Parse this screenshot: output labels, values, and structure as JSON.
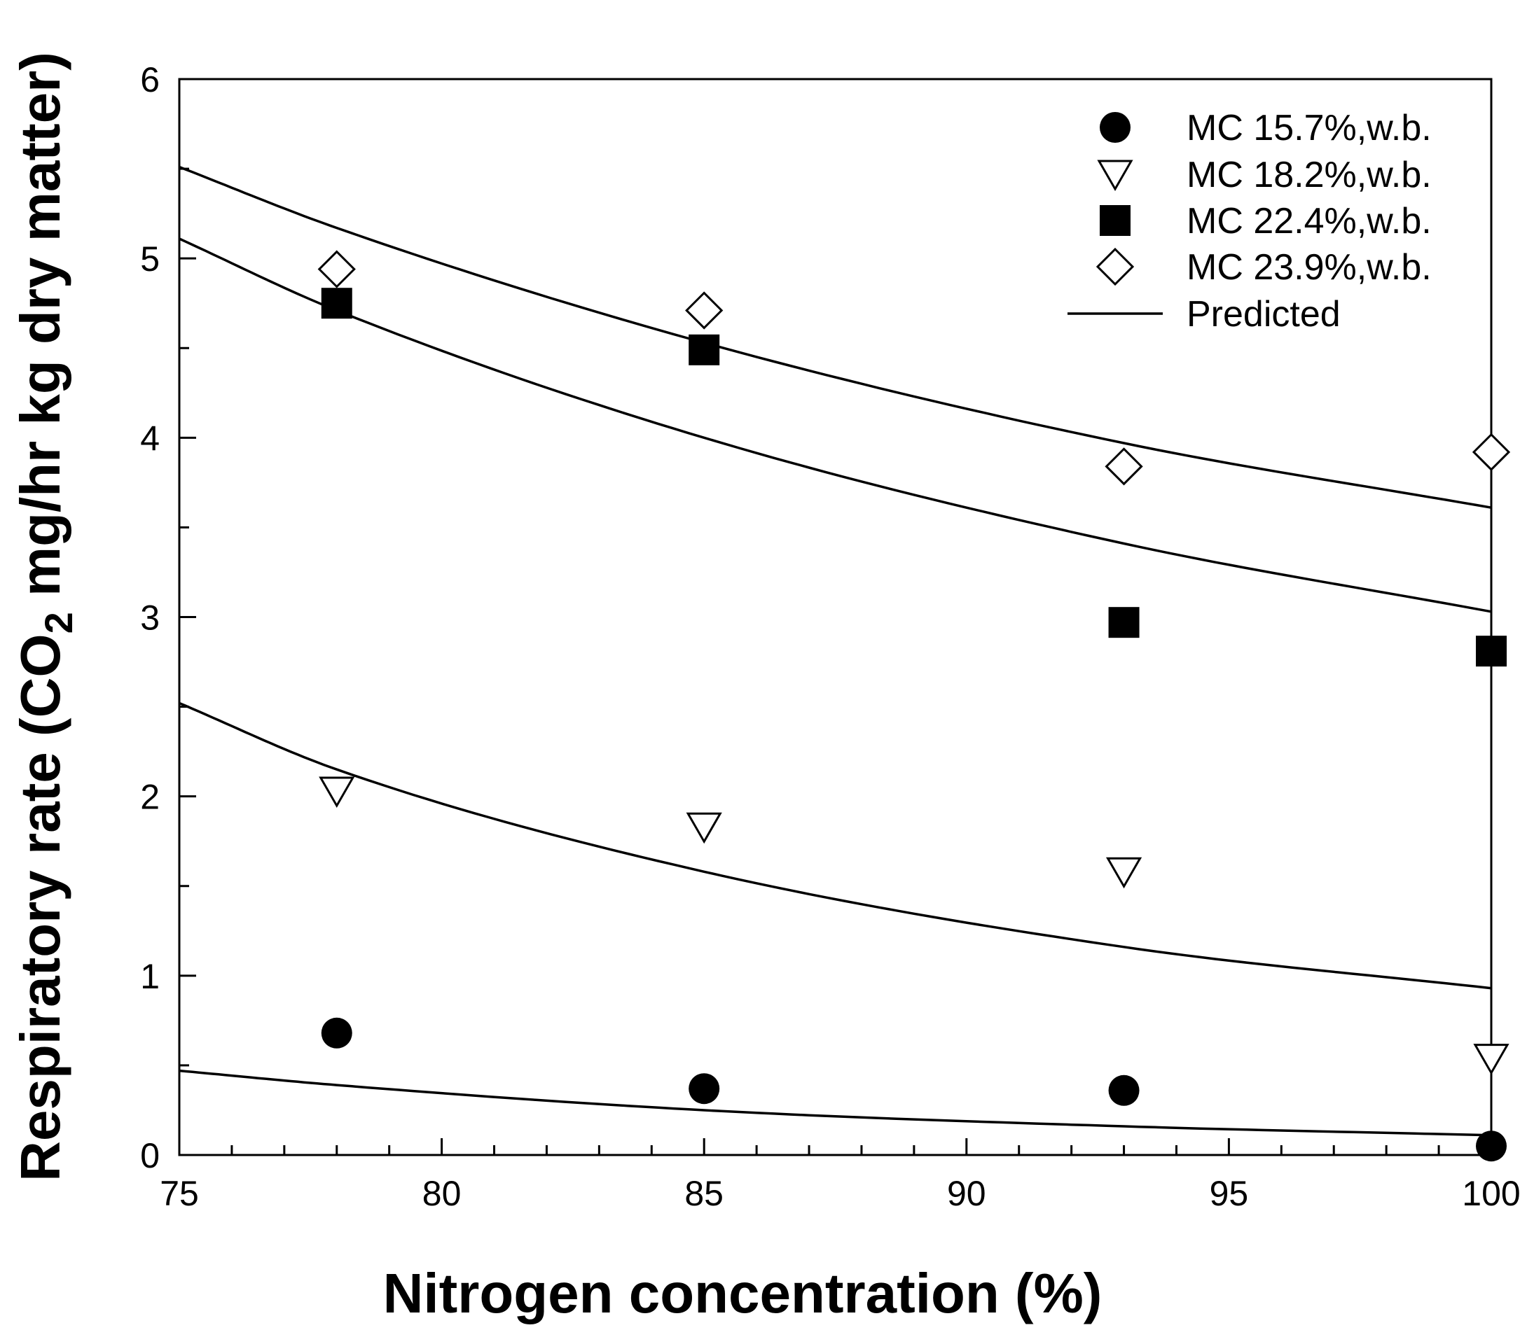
{
  "chart_data": {
    "type": "scatter",
    "title": "",
    "xlabel": "Nitrogen concentration (%)",
    "ylabel": {
      "prefix": "Respiratory rate (CO",
      "subscript": "2",
      "suffix": " mg/hr kg dry matter)"
    },
    "xlim": [
      75,
      100
    ],
    "ylim": [
      0,
      6
    ],
    "x_ticks": [
      75,
      80,
      85,
      90,
      95,
      100
    ],
    "x_tick_labels": [
      "75",
      "80",
      "85",
      "90",
      "95",
      "100"
    ],
    "x_minor_step": 1,
    "y_ticks": [
      0,
      1,
      2,
      3,
      4,
      5,
      6
    ],
    "y_tick_labels": [
      "0",
      "1",
      "2",
      "3",
      "4",
      "5",
      "6"
    ],
    "y_minor_step": 0.5,
    "grid": false,
    "legend_position": "top-right",
    "series": [
      {
        "name": "MC 15.7%,w.b.",
        "marker": "filled-circle",
        "points": [
          {
            "x": 78,
            "y": 0.68
          },
          {
            "x": 85,
            "y": 0.37
          },
          {
            "x": 93,
            "y": 0.36
          },
          {
            "x": 100,
            "y": 0.05
          }
        ]
      },
      {
        "name": "MC 18.2%,w.b.",
        "marker": "open-triangle-down",
        "points": [
          {
            "x": 78,
            "y": 2.03
          },
          {
            "x": 85,
            "y": 1.83
          },
          {
            "x": 93,
            "y": 1.58
          },
          {
            "x": 100,
            "y": 0.54
          }
        ]
      },
      {
        "name": "MC 22.4%,w.b.",
        "marker": "filled-square",
        "points": [
          {
            "x": 78,
            "y": 4.75
          },
          {
            "x": 85,
            "y": 4.49
          },
          {
            "x": 93,
            "y": 2.97
          },
          {
            "x": 100,
            "y": 2.81
          }
        ]
      },
      {
        "name": "MC 23.9%,w.b.",
        "marker": "open-diamond",
        "points": [
          {
            "x": 78,
            "y": 4.94
          },
          {
            "x": 85,
            "y": 4.71
          },
          {
            "x": 93,
            "y": 3.84
          },
          {
            "x": 100,
            "y": 3.92
          }
        ]
      }
    ],
    "predicted": {
      "name": "Predicted",
      "line_style": "solid",
      "curves": [
        {
          "for": "MC 15.7%,w.b.",
          "x": [
            75,
            78,
            85,
            93,
            100
          ],
          "y": [
            0.47,
            0.39,
            0.25,
            0.16,
            0.11
          ]
        },
        {
          "for": "MC 18.2%,w.b.",
          "x": [
            75,
            78,
            85,
            93,
            100
          ],
          "y": [
            2.52,
            2.15,
            1.58,
            1.16,
            0.93
          ]
        },
        {
          "for": "MC 22.4%,w.b.",
          "x": [
            75,
            78,
            85,
            93,
            100
          ],
          "y": [
            5.11,
            4.71,
            4.0,
            3.41,
            3.03
          ]
        },
        {
          "for": "MC 23.9%,w.b.",
          "x": [
            75,
            78,
            85,
            93,
            100
          ],
          "y": [
            5.51,
            5.17,
            4.53,
            3.97,
            3.61
          ]
        }
      ]
    },
    "vertical_line": {
      "x": 100,
      "y_from": 0.05,
      "y_to": 3.92
    }
  }
}
